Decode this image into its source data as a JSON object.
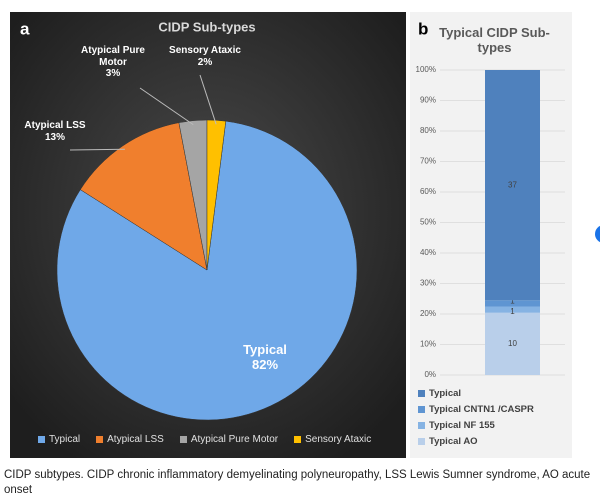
{
  "chart_data": [
    {
      "type": "pie",
      "panel_label": "a",
      "title": "CIDP Sub-types",
      "categories": [
        "Typical",
        "Atypical LSS",
        "Atypical Pure Motor",
        "Sensory Ataxic"
      ],
      "values": [
        82,
        13,
        3,
        2
      ],
      "value_labels": [
        "82%",
        "13%",
        "3%",
        "2%"
      ],
      "colors": [
        "#6fa8e8",
        "#f07f2d",
        "#a5a5a5",
        "#ffc000"
      ],
      "legend": "bottom"
    },
    {
      "type": "stacked-percent-bar",
      "panel_label": "b",
      "title": "Typical CIDP Sub-types",
      "categories": [
        null
      ],
      "series": [
        {
          "name": "Typical",
          "color": "#4f81bd",
          "values": [
            37
          ]
        },
        {
          "name": "Typical CNTN1 /CASPR",
          "color": "#5f95d2",
          "values": [
            1
          ]
        },
        {
          "name": "Typical NF 155",
          "color": "#86b3e3",
          "values": [
            1
          ]
        },
        {
          "name": "Typical AO",
          "color": "#b9cfea",
          "values": [
            10
          ]
        }
      ],
      "ylim": [
        0,
        100
      ],
      "yticks": [
        {
          "value": 0,
          "label": "0%"
        },
        {
          "value": 10,
          "label": "10%"
        },
        {
          "value": 20,
          "label": "20%"
        },
        {
          "value": 30,
          "label": "30%"
        },
        {
          "value": 40,
          "label": "40%"
        },
        {
          "value": 50,
          "label": "50%"
        },
        {
          "value": 60,
          "label": "60%"
        },
        {
          "value": 70,
          "label": "70%"
        },
        {
          "value": 80,
          "label": "80%"
        },
        {
          "value": 90,
          "label": "90%"
        },
        {
          "value": 100,
          "label": "100%"
        }
      ],
      "grid": true,
      "legend": "bottom"
    }
  ],
  "caption": "CIDP subtypes. CIDP chronic inflammatory demyelinating polyneuropathy, LSS Lewis Sumner syndrome, AO acute onset"
}
